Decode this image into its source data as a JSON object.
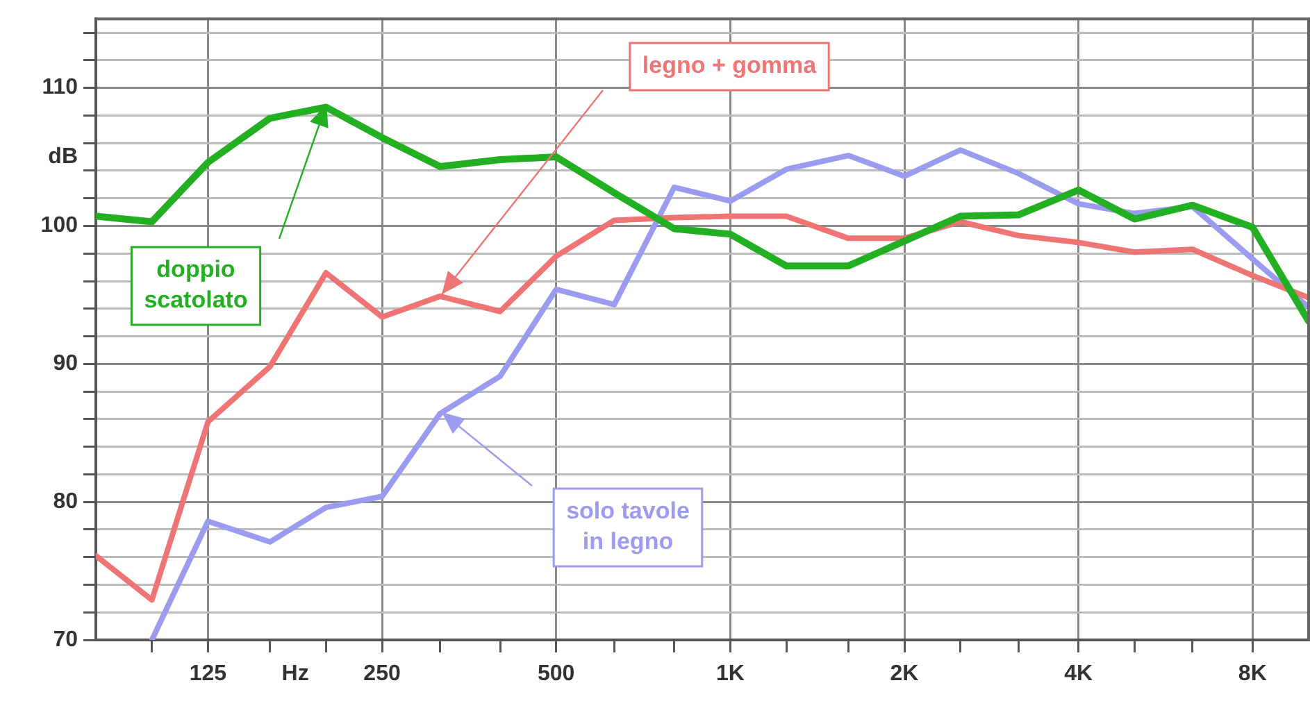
{
  "chart_data": {
    "type": "line",
    "log": "x",
    "grid": true,
    "legend": false,
    "marker": "none",
    "line_style": "solid",
    "x": [
      80,
      100,
      125,
      160,
      200,
      250,
      315,
      400,
      500,
      630,
      800,
      1000,
      1250,
      1600,
      2000,
      2500,
      3150,
      4000,
      5000,
      6300,
      8000,
      10000
    ],
    "xlim": [
      80,
      10000
    ],
    "xticks": [
      {
        "value": 100,
        "label": null
      },
      125,
      {
        "value": 160,
        "label": null
      },
      {
        "value": 177,
        "label": "Hz"
      },
      {
        "value": 200,
        "label": null
      },
      250,
      {
        "value": 315,
        "label": null
      },
      {
        "value": 400,
        "label": null
      },
      500,
      {
        "value": 630,
        "label": null
      },
      {
        "value": 800,
        "label": null
      },
      {
        "value": 1000,
        "label": "1K"
      },
      {
        "value": 1250,
        "label": null
      },
      {
        "value": 1600,
        "label": null
      },
      {
        "value": 2000,
        "label": "2K"
      },
      {
        "value": 2500,
        "label": null
      },
      {
        "value": 3150,
        "label": null
      },
      {
        "value": 4000,
        "label": "4K"
      },
      {
        "value": 5000,
        "label": null
      },
      {
        "value": 6300,
        "label": null
      },
      {
        "value": 8000,
        "label": "8K"
      }
    ],
    "ylim": [
      70,
      115
    ],
    "yticks": [
      70,
      {
        "value": 72,
        "label": null
      },
      {
        "value": 74,
        "label": null
      },
      {
        "value": 76,
        "label": null
      },
      {
        "value": 78,
        "label": null
      },
      80,
      {
        "value": 82,
        "label": null
      },
      {
        "value": 84,
        "label": null
      },
      {
        "value": 86,
        "label": null
      },
      {
        "value": 88,
        "label": null
      },
      90,
      {
        "value": 92,
        "label": null
      },
      {
        "value": 94,
        "label": null
      },
      {
        "value": 96,
        "label": null
      },
      {
        "value": 98,
        "label": null
      },
      100,
      {
        "value": 102,
        "label": null
      },
      {
        "value": 104,
        "label": null
      },
      {
        "value": 105,
        "label": "dB"
      },
      {
        "value": 106,
        "label": null
      },
      {
        "value": 108,
        "label": null
      },
      110,
      {
        "value": 112,
        "label": null
      },
      {
        "value": 114,
        "label": null
      }
    ],
    "series": [
      {
        "color": "#22b022",
        "values": [
          100.7,
          100.3,
          104.6,
          107.8,
          108.6,
          106.4,
          104.3,
          104.8,
          105.0,
          102.4,
          99.8,
          99.4,
          97.1,
          97.1,
          98.9,
          100.7,
          100.8,
          102.6,
          100.5,
          101.5,
          99.9,
          93.1
        ]
      },
      {
        "color": "#ef7474",
        "values": [
          76.1,
          72.9,
          85.8,
          89.8,
          96.6,
          93.4,
          94.9,
          93.8,
          97.8,
          100.4,
          100.6,
          100.7,
          100.7,
          99.1,
          99.1,
          100.3,
          99.3,
          98.8,
          98.1,
          98.3,
          96.4,
          94.8
        ]
      },
      {
        "color": "#9b9bf0",
        "values": [
          null,
          70,
          78.6,
          77.1,
          79.6,
          80.4,
          86.4,
          89.1,
          95.4,
          94.3,
          102.8,
          101.8,
          104.1,
          105.1,
          103.6,
          105.5,
          103.8,
          101.6,
          100.9,
          101.4,
          97.6,
          94.1
        ]
      }
    ],
    "annotations": [
      "doppio\nscatolato",
      "legno + gomma",
      "solo tavole\nin legno"
    ]
  }
}
